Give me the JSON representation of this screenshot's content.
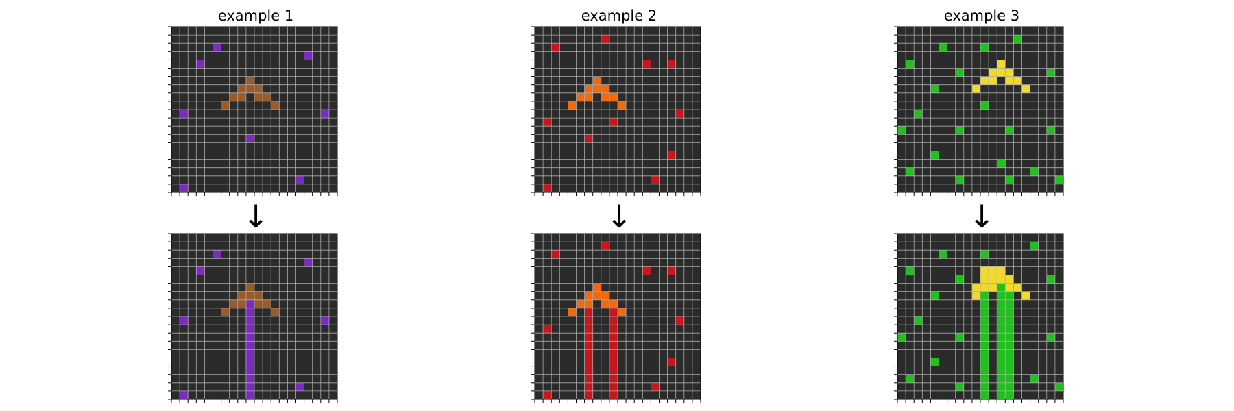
{
  "examples": [
    {
      "title": "example 1",
      "arrow": "↓",
      "colors": {
        "background": "#2b2b2b",
        "grid": "#aaaaaa",
        "shape": "#9a5b2a",
        "dots": "#7b2cbf"
      },
      "input": {
        "shape": [
          [
            6,
            9
          ],
          [
            7,
            8
          ],
          [
            7,
            9
          ],
          [
            7,
            10
          ],
          [
            8,
            7
          ],
          [
            8,
            8
          ],
          [
            8,
            10
          ],
          [
            8,
            11
          ],
          [
            9,
            6
          ],
          [
            9,
            12
          ]
        ],
        "dots": [
          [
            2,
            5
          ],
          [
            3,
            16
          ],
          [
            4,
            3
          ],
          [
            10,
            1
          ],
          [
            10,
            18
          ],
          [
            13,
            9
          ],
          [
            18,
            15
          ],
          [
            19,
            1
          ]
        ]
      },
      "output": {
        "shape": [
          [
            6,
            9
          ],
          [
            7,
            8
          ],
          [
            7,
            9
          ],
          [
            7,
            10
          ],
          [
            8,
            7
          ],
          [
            8,
            8
          ],
          [
            8,
            10
          ],
          [
            8,
            11
          ],
          [
            9,
            6
          ],
          [
            9,
            12
          ]
        ],
        "dots": [
          [
            2,
            5
          ],
          [
            3,
            16
          ],
          [
            4,
            3
          ],
          [
            10,
            1
          ],
          [
            10,
            18
          ],
          [
            13,
            9
          ],
          [
            18,
            15
          ],
          [
            19,
            1
          ]
        ],
        "lines": [
          [
            8,
            9
          ],
          [
            9,
            9
          ],
          [
            10,
            9
          ],
          [
            11,
            9
          ],
          [
            12,
            9
          ],
          [
            13,
            9
          ],
          [
            14,
            9
          ],
          [
            15,
            9
          ],
          [
            16,
            9
          ],
          [
            17,
            9
          ],
          [
            18,
            9
          ],
          [
            19,
            9
          ]
        ]
      }
    },
    {
      "title": "example 2",
      "arrow": "↓",
      "colors": {
        "background": "#2b2b2b",
        "grid": "#aaaaaa",
        "shape": "#f06a12",
        "dots": "#c8161e"
      },
      "input": {
        "shape": [
          [
            6,
            7
          ],
          [
            7,
            6
          ],
          [
            7,
            7
          ],
          [
            7,
            8
          ],
          [
            8,
            5
          ],
          [
            8,
            6
          ],
          [
            8,
            8
          ],
          [
            8,
            9
          ],
          [
            9,
            4
          ],
          [
            9,
            10
          ]
        ],
        "dots": [
          [
            1,
            8
          ],
          [
            2,
            2
          ],
          [
            4,
            13
          ],
          [
            4,
            16
          ],
          [
            10,
            17
          ],
          [
            11,
            1
          ],
          [
            11,
            9
          ],
          [
            13,
            6
          ],
          [
            15,
            16
          ],
          [
            18,
            14
          ],
          [
            19,
            1
          ]
        ]
      },
      "output": {
        "shape": [
          [
            6,
            7
          ],
          [
            7,
            6
          ],
          [
            7,
            7
          ],
          [
            7,
            8
          ],
          [
            8,
            5
          ],
          [
            8,
            6
          ],
          [
            8,
            8
          ],
          [
            8,
            9
          ],
          [
            9,
            4
          ],
          [
            9,
            10
          ]
        ],
        "dots": [
          [
            1,
            8
          ],
          [
            2,
            2
          ],
          [
            4,
            13
          ],
          [
            4,
            16
          ],
          [
            10,
            17
          ],
          [
            11,
            1
          ],
          [
            11,
            9
          ],
          [
            13,
            6
          ],
          [
            15,
            16
          ],
          [
            18,
            14
          ],
          [
            19,
            1
          ]
        ],
        "lines": [
          [
            9,
            6
          ],
          [
            10,
            6
          ],
          [
            11,
            6
          ],
          [
            12,
            6
          ],
          [
            13,
            6
          ],
          [
            14,
            6
          ],
          [
            15,
            6
          ],
          [
            16,
            6
          ],
          [
            17,
            6
          ],
          [
            18,
            6
          ],
          [
            19,
            6
          ],
          [
            9,
            9
          ],
          [
            10,
            9
          ],
          [
            11,
            9
          ],
          [
            12,
            9
          ],
          [
            13,
            9
          ],
          [
            14,
            9
          ],
          [
            15,
            9
          ],
          [
            16,
            9
          ],
          [
            17,
            9
          ],
          [
            18,
            9
          ],
          [
            19,
            9
          ]
        ]
      }
    },
    {
      "title": "example 3",
      "arrow": "↓",
      "colors": {
        "background": "#2b2b2b",
        "grid": "#aaaaaa",
        "shape": "#f2d92e",
        "dots": "#22c01e"
      },
      "input": {
        "shape": [
          [
            4,
            12
          ],
          [
            5,
            11
          ],
          [
            5,
            12
          ],
          [
            5,
            13
          ],
          [
            6,
            10
          ],
          [
            6,
            11
          ],
          [
            6,
            13
          ],
          [
            6,
            14
          ],
          [
            7,
            9
          ],
          [
            7,
            15
          ]
        ],
        "dots": [
          [
            1,
            14
          ],
          [
            2,
            5
          ],
          [
            2,
            10
          ],
          [
            4,
            1
          ],
          [
            5,
            7
          ],
          [
            5,
            18
          ],
          [
            7,
            4
          ],
          [
            9,
            10
          ],
          [
            10,
            2
          ],
          [
            12,
            0
          ],
          [
            12,
            7
          ],
          [
            12,
            13
          ],
          [
            12,
            18
          ],
          [
            15,
            4
          ],
          [
            16,
            12
          ],
          [
            17,
            1
          ],
          [
            17,
            16
          ],
          [
            18,
            7
          ],
          [
            18,
            13
          ],
          [
            18,
            19
          ]
        ]
      },
      "output": {
        "shape": [
          [
            4,
            10
          ],
          [
            4,
            11
          ],
          [
            4,
            12
          ],
          [
            5,
            10
          ],
          [
            5,
            11
          ],
          [
            5,
            12
          ],
          [
            5,
            13
          ],
          [
            6,
            9
          ],
          [
            6,
            10
          ],
          [
            6,
            11
          ],
          [
            6,
            13
          ],
          [
            6,
            14
          ],
          [
            7,
            9
          ],
          [
            7,
            15
          ]
        ],
        "dots": [
          [
            1,
            16
          ],
          [
            2,
            5
          ],
          [
            2,
            10
          ],
          [
            4,
            1
          ],
          [
            5,
            7
          ],
          [
            5,
            18
          ],
          [
            7,
            4
          ],
          [
            10,
            2
          ],
          [
            12,
            0
          ],
          [
            12,
            7
          ],
          [
            12,
            18
          ],
          [
            15,
            4
          ],
          [
            17,
            1
          ],
          [
            17,
            16
          ],
          [
            18,
            7
          ],
          [
            18,
            19
          ]
        ],
        "lines": [
          [
            7,
            10
          ],
          [
            8,
            10
          ],
          [
            9,
            10
          ],
          [
            10,
            10
          ],
          [
            11,
            10
          ],
          [
            12,
            10
          ],
          [
            13,
            10
          ],
          [
            14,
            10
          ],
          [
            15,
            10
          ],
          [
            16,
            10
          ],
          [
            17,
            10
          ],
          [
            18,
            10
          ],
          [
            19,
            10
          ],
          [
            6,
            12
          ],
          [
            7,
            12
          ],
          [
            8,
            12
          ],
          [
            9,
            12
          ],
          [
            10,
            12
          ],
          [
            11,
            12
          ],
          [
            12,
            12
          ],
          [
            13,
            12
          ],
          [
            14,
            12
          ],
          [
            15,
            12
          ],
          [
            16,
            12
          ],
          [
            17,
            12
          ],
          [
            18,
            12
          ],
          [
            19,
            12
          ],
          [
            6,
            13
          ],
          [
            7,
            13
          ],
          [
            8,
            13
          ],
          [
            9,
            13
          ],
          [
            10,
            13
          ],
          [
            11,
            13
          ],
          [
            12,
            13
          ],
          [
            13,
            13
          ],
          [
            14,
            13
          ],
          [
            15,
            13
          ],
          [
            16,
            13
          ],
          [
            17,
            13
          ],
          [
            18,
            13
          ],
          [
            19,
            13
          ]
        ]
      }
    }
  ]
}
